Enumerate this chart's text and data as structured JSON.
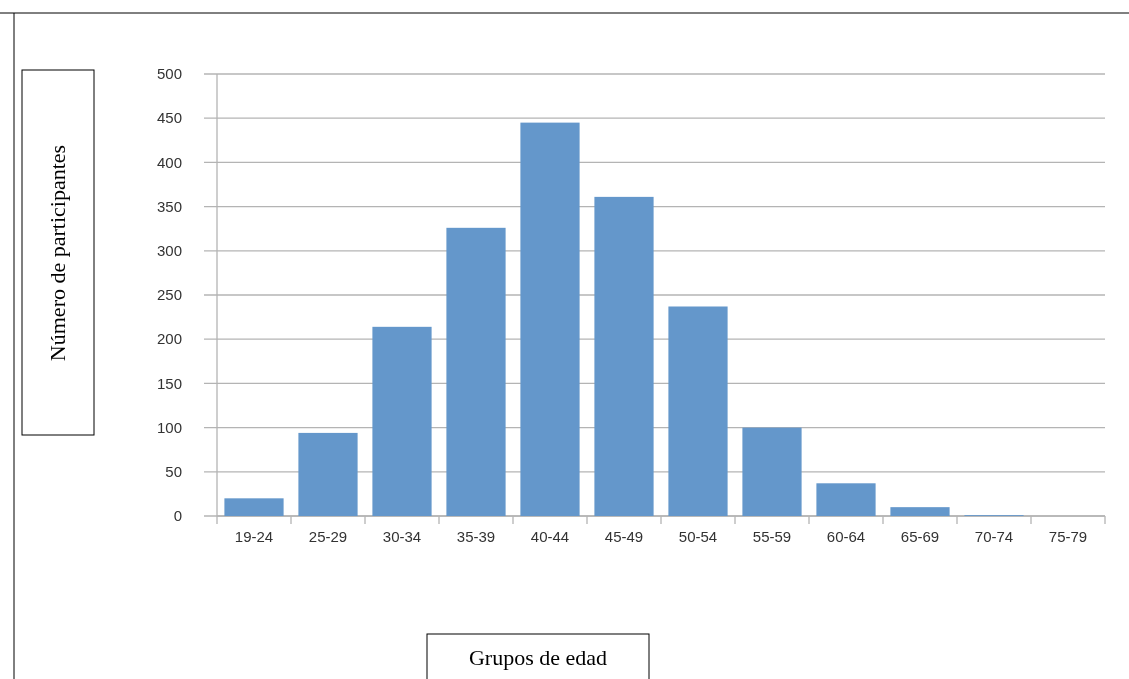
{
  "chart_data": {
    "type": "bar",
    "xlabel": "Grupos de edad",
    "ylabel": "Número de participantes",
    "categories": [
      "19-24",
      "25-29",
      "30-34",
      "35-39",
      "40-44",
      "45-49",
      "50-54",
      "55-59",
      "60-64",
      "65-69",
      "70-74",
      "75-79"
    ],
    "values": [
      20,
      94,
      214,
      326,
      445,
      361,
      237,
      100,
      37,
      10,
      1,
      0
    ],
    "color": "#6497cb",
    "ylim": [
      0,
      500
    ],
    "yticks": [
      0,
      50,
      100,
      150,
      200,
      250,
      300,
      350,
      400,
      450,
      500
    ],
    "grid": "y"
  }
}
